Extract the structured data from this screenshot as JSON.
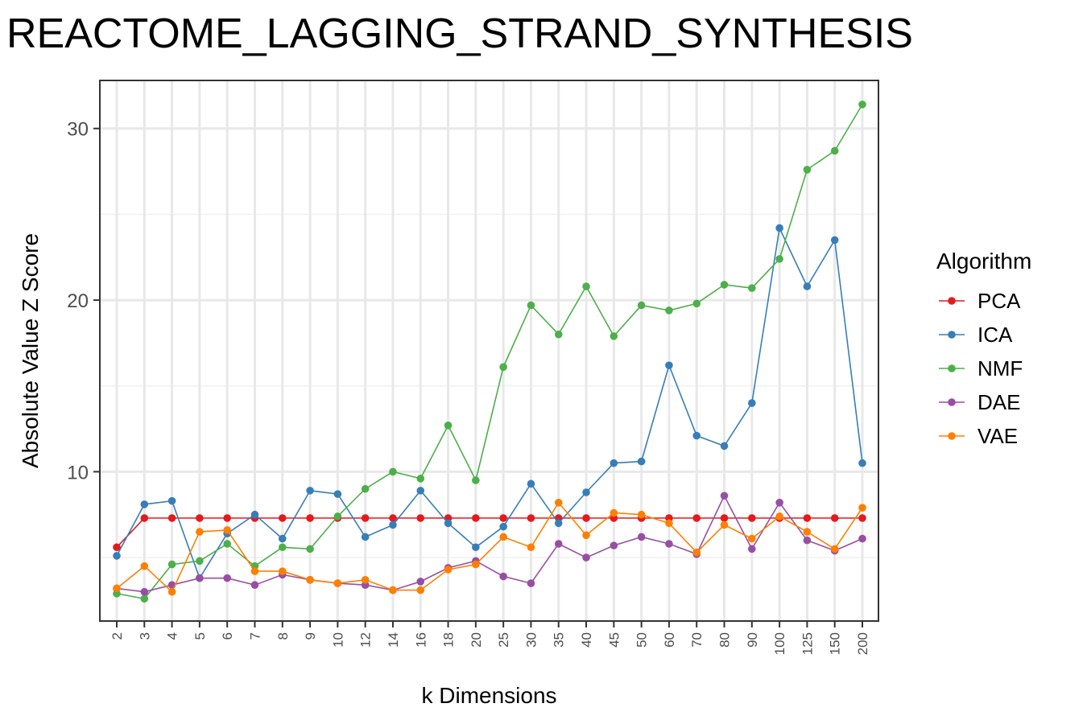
{
  "chart_data": {
    "type": "line",
    "title": "REACTOME_LAGGING_STRAND_SYNTHESIS",
    "xlabel": "k Dimensions",
    "ylabel": "Absolute Value Z Score",
    "categories": [
      "2",
      "3",
      "4",
      "5",
      "6",
      "7",
      "8",
      "9",
      "10",
      "12",
      "14",
      "16",
      "18",
      "20",
      "25",
      "30",
      "35",
      "40",
      "45",
      "50",
      "60",
      "70",
      "80",
      "90",
      "100",
      "125",
      "150",
      "200"
    ],
    "y_ticks": [
      10,
      20,
      30
    ],
    "ylim": [
      1.3,
      32.8
    ],
    "grid": true,
    "legend": {
      "title": "Algorithm",
      "position": "right"
    },
    "series": [
      {
        "name": "PCA",
        "color": "#e41a1c",
        "values": [
          5.6,
          7.3,
          7.3,
          7.3,
          7.3,
          7.3,
          7.3,
          7.3,
          7.3,
          7.3,
          7.3,
          7.3,
          7.3,
          7.3,
          7.3,
          7.3,
          7.3,
          7.3,
          7.3,
          7.3,
          7.3,
          7.3,
          7.3,
          7.3,
          7.3,
          7.3,
          7.3,
          7.3
        ]
      },
      {
        "name": "ICA",
        "color": "#377eb8",
        "values": [
          5.1,
          8.1,
          8.3,
          3.8,
          6.4,
          7.5,
          6.1,
          8.9,
          8.7,
          6.2,
          6.9,
          8.9,
          7.0,
          5.6,
          6.8,
          9.3,
          7.0,
          8.8,
          10.5,
          10.6,
          16.2,
          12.1,
          11.5,
          14.0,
          24.2,
          20.8,
          23.5,
          10.5
        ]
      },
      {
        "name": "NMF",
        "color": "#4daf4a",
        "values": [
          2.9,
          2.6,
          4.6,
          4.8,
          5.8,
          4.5,
          5.6,
          5.5,
          7.4,
          9.0,
          10.0,
          9.6,
          12.7,
          9.5,
          16.1,
          19.7,
          18.0,
          20.8,
          17.9,
          19.7,
          19.4,
          19.8,
          20.9,
          20.7,
          22.4,
          27.6,
          28.7,
          31.4
        ]
      },
      {
        "name": "DAE",
        "color": "#984ea3",
        "values": [
          3.2,
          3.0,
          3.4,
          3.8,
          3.8,
          3.4,
          4.0,
          3.7,
          3.5,
          3.4,
          3.1,
          3.6,
          4.4,
          4.8,
          3.9,
          3.5,
          5.8,
          5.0,
          5.7,
          6.2,
          5.8,
          5.2,
          8.6,
          5.5,
          8.2,
          6.0,
          5.4,
          6.1
        ]
      },
      {
        "name": "VAE",
        "color": "#ff7f00",
        "values": [
          3.2,
          4.5,
          3.0,
          6.5,
          6.6,
          4.2,
          4.2,
          3.7,
          3.5,
          3.7,
          3.1,
          3.1,
          4.3,
          4.6,
          6.2,
          5.6,
          8.2,
          6.3,
          7.6,
          7.5,
          7.0,
          5.3,
          6.9,
          6.1,
          7.4,
          6.5,
          5.5,
          7.9
        ]
      }
    ]
  }
}
